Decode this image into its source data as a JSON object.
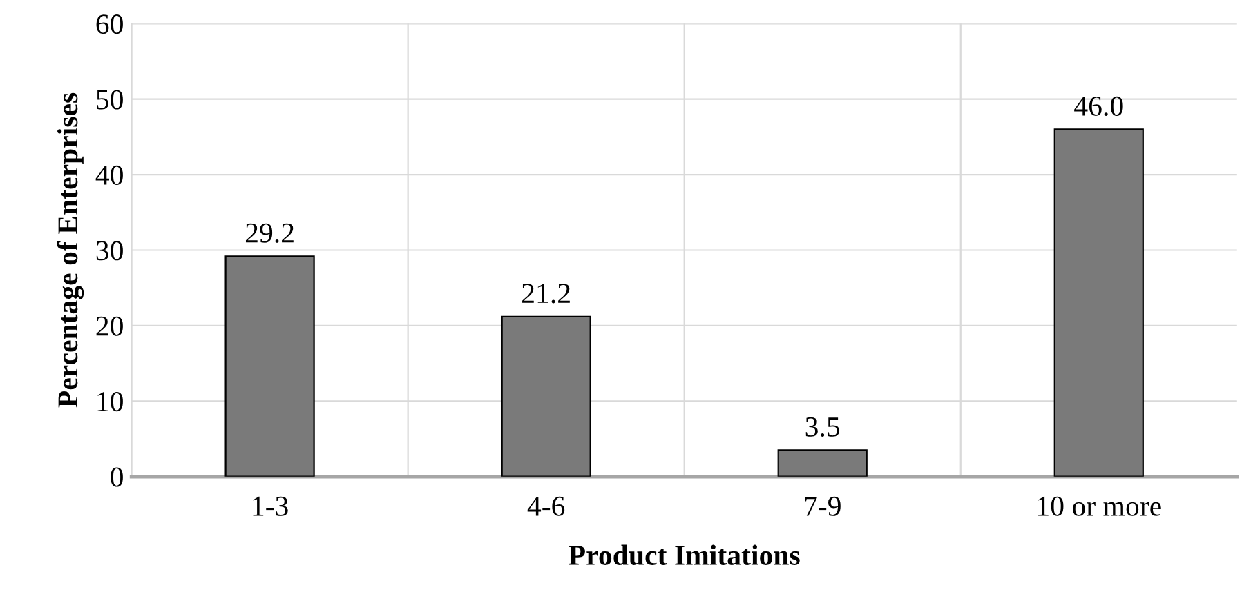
{
  "chart_data": {
    "type": "bar",
    "xlabel": "Product Imitations",
    "ylabel": "Percentage of Enterprises",
    "categories": [
      "1-3",
      "4-6",
      "7-9",
      "10 or more"
    ],
    "values": [
      29.2,
      21.2,
      3.5,
      46.0
    ],
    "value_labels": [
      "29.2",
      "21.2",
      "3.5",
      "46.0"
    ],
    "color": "#7a7a7a",
    "ylim": [
      0,
      60
    ],
    "yticks": [
      0,
      10,
      20,
      30,
      40,
      50,
      60
    ],
    "grid": true
  }
}
